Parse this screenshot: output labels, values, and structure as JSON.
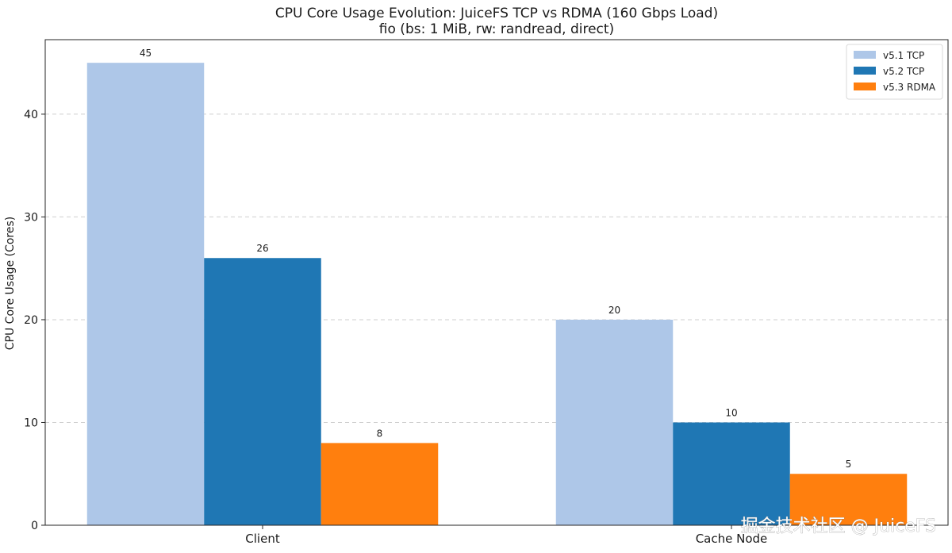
{
  "watermark": "掘金技术社区 @ JuiceFS",
  "chart_data": {
    "type": "bar",
    "title": "CPU Core Usage Evolution: JuiceFS TCP vs RDMA (160 Gbps Load)",
    "subtitle": "fio (bs: 1 MiB, rw: randread, direct)",
    "xlabel": "",
    "ylabel": "CPU Core Usage (Cores)",
    "ylim": [
      0,
      47.25
    ],
    "yticks": [
      0,
      10,
      20,
      30,
      40
    ],
    "grid": true,
    "legend_position": "top-right",
    "categories": [
      "Client",
      "Cache Node"
    ],
    "series": [
      {
        "name": "v5.1 TCP",
        "color": "#aec7e8",
        "values": [
          45,
          20
        ]
      },
      {
        "name": "v5.2 TCP",
        "color": "#1f77b4",
        "values": [
          26,
          10
        ]
      },
      {
        "name": "v5.3 RDMA",
        "color": "#ff7f0e",
        "values": [
          8,
          5
        ]
      }
    ]
  }
}
